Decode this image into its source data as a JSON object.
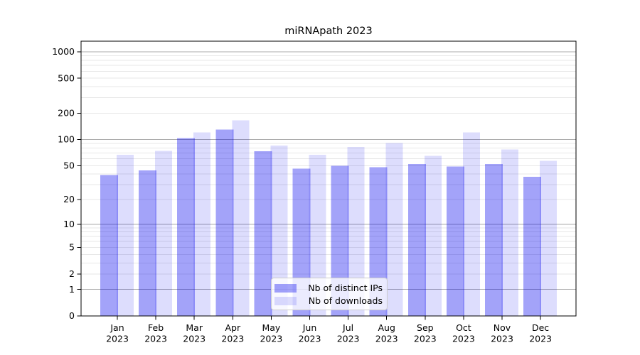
{
  "title": "miRNApath 2023",
  "colors": {
    "grid_major": "#ababab",
    "grid_minor": "#e7e7e7",
    "spine": "#000000",
    "text": "#000000",
    "legend_border": "#cccccc",
    "legend_bg": "rgba(255,255,255,0.78)"
  },
  "chart_data": {
    "type": "bar",
    "title": "miRNApath 2023",
    "categories": [
      "Jan 2023",
      "Feb 2023",
      "Mar 2023",
      "Apr 2023",
      "May 2023",
      "Jun 2023",
      "Jul 2023",
      "Aug 2023",
      "Sep 2023",
      "Oct 2023",
      "Nov 2023",
      "Dec 2023"
    ],
    "series": [
      {
        "name": "Nb of distinct IPs",
        "color": "#0000ee",
        "alpha": 0.36,
        "values": [
          39,
          44,
          104,
          130,
          73,
          46,
          50,
          48,
          52,
          49,
          52,
          37
        ]
      },
      {
        "name": "Nb of downloads",
        "color": "#0000ee",
        "alpha": 0.135,
        "values": [
          67,
          74,
          120,
          165,
          85,
          67,
          82,
          91,
          65,
          120,
          77,
          57
        ]
      }
    ],
    "xlabel": "",
    "ylabel": "",
    "yscale": "log1p",
    "yticks": [
      0,
      1,
      2,
      5,
      10,
      20,
      50,
      100,
      200,
      500,
      1000
    ],
    "ylim": [
      0,
      1280
    ],
    "grid": true,
    "legend_position": "lower center"
  }
}
